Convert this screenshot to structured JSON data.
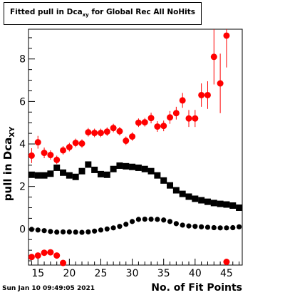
{
  "title": {
    "prefix": "Fitted pull in Dca",
    "subscript": "xy",
    "suffix": " for Global Rec All NoHits"
  },
  "timestamp": "Sun Jan 10 09:49:05 2021",
  "chart_data": {
    "type": "scatter",
    "xlabel": "No. of Fit Points",
    "ylabel": {
      "text": "pull in Dca",
      "subscript": "XY"
    },
    "xlim": [
      13.5,
      47.5
    ],
    "ylim": [
      -1.7,
      9.4
    ],
    "x_ticks": [
      15,
      20,
      25,
      30,
      35,
      40,
      45
    ],
    "y_ticks": [
      0,
      2,
      4,
      6,
      8
    ],
    "grid": false,
    "colors": {
      "red": "#ff0000",
      "black": "#000000"
    },
    "series": [
      {
        "marker": "circle",
        "color": "#000000",
        "x": [
          14,
          15,
          16,
          17,
          18,
          19,
          20,
          21,
          22,
          23,
          24,
          25,
          26,
          27,
          28,
          29,
          30,
          31,
          32,
          33,
          34,
          35,
          36,
          37,
          38,
          39,
          40,
          41,
          42,
          43,
          44,
          45,
          46,
          47
        ],
        "y": [
          -0.02,
          -0.05,
          -0.08,
          -0.12,
          -0.15,
          -0.14,
          -0.14,
          -0.15,
          -0.16,
          -0.14,
          -0.1,
          -0.05,
          0,
          0.05,
          0.12,
          0.22,
          0.35,
          0.45,
          0.46,
          0.46,
          0.45,
          0.42,
          0.35,
          0.25,
          0.18,
          0.14,
          0.12,
          0.1,
          0.08,
          0.06,
          0.05,
          0.05,
          0.06,
          0.1
        ]
      },
      {
        "marker": "square",
        "color": "#000000",
        "x": [
          14,
          15,
          16,
          17,
          18,
          19,
          20,
          21,
          22,
          23,
          24,
          25,
          26,
          27,
          28,
          29,
          30,
          31,
          32,
          33,
          34,
          35,
          36,
          37,
          38,
          39,
          40,
          41,
          42,
          43,
          44,
          45,
          46,
          47
        ],
        "y": [
          2.55,
          2.52,
          2.52,
          2.6,
          2.88,
          2.65,
          2.52,
          2.45,
          2.72,
          3.03,
          2.78,
          2.58,
          2.55,
          2.82,
          2.98,
          2.95,
          2.92,
          2.88,
          2.82,
          2.72,
          2.52,
          2.28,
          2.05,
          1.82,
          1.65,
          1.52,
          1.42,
          1.35,
          1.28,
          1.22,
          1.18,
          1.15,
          1.1,
          1.0
        ]
      },
      {
        "marker": "circle",
        "color": "#ff0000",
        "x": [
          14,
          15,
          16,
          17,
          18,
          19,
          20,
          21,
          22,
          23,
          24,
          25,
          26,
          27,
          28,
          29,
          30,
          31,
          32,
          33,
          34,
          35,
          36,
          37,
          38,
          39,
          40,
          41,
          42,
          43,
          44,
          45
        ],
        "y": [
          3.45,
          4.08,
          3.58,
          3.48,
          3.25,
          3.7,
          3.85,
          4.05,
          4.02,
          4.55,
          4.52,
          4.52,
          4.58,
          4.75,
          4.6,
          4.15,
          4.35,
          5.0,
          5.02,
          5.22,
          4.82,
          4.85,
          5.25,
          5.45,
          6.05,
          5.2,
          5.2,
          6.3,
          6.3,
          8.1,
          6.85,
          9.1
        ],
        "y_error": [
          0.35,
          0.3,
          0.25,
          0.22,
          0.2,
          0.2,
          0.2,
          0.2,
          0.2,
          0.2,
          0.2,
          0.2,
          0.2,
          0.2,
          0.2,
          0.2,
          0.2,
          0.2,
          0.2,
          0.25,
          0.25,
          0.25,
          0.3,
          0.3,
          0.35,
          0.4,
          0.4,
          0.55,
          0.65,
          1.3,
          1.4,
          1.5
        ]
      },
      {
        "marker": "circle",
        "color": "#ff0000",
        "x": [
          14,
          15,
          16,
          17,
          18,
          19,
          45
        ],
        "y": [
          -1.32,
          -1.25,
          -1.12,
          -1.1,
          -1.25,
          -1.6,
          -1.55
        ]
      }
    ]
  }
}
